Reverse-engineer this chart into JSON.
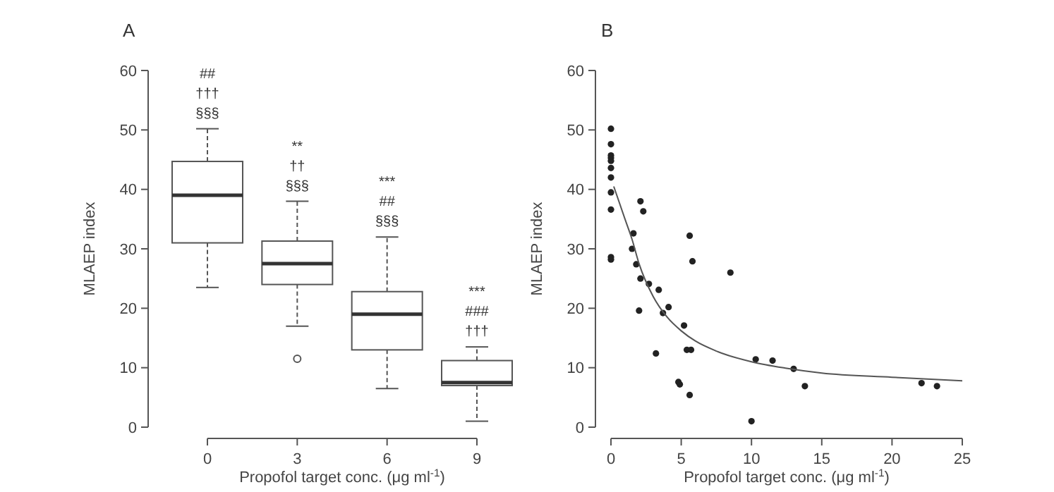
{
  "chart_data": [
    {
      "type": "box",
      "title": "A",
      "xlabel": "Propofol target conc. (μg ml$^{-1}$)",
      "ylabel": "MLAEP index",
      "categories": [
        "0",
        "3",
        "6",
        "9"
      ],
      "boxes": [
        {
          "low": 23.5,
          "q1": 31,
          "median": 39,
          "q3": 44.7,
          "high": 50.2
        },
        {
          "low": 17,
          "q1": 24,
          "median": 27.5,
          "q3": 31.3,
          "high": 38,
          "outliers": [
            11.5
          ]
        },
        {
          "low": 6.5,
          "q1": 13,
          "median": 19,
          "q3": 22.8,
          "high": 32
        },
        {
          "low": 1,
          "q1": 7,
          "median": 7.5,
          "q3": 11.2,
          "high": 13.5
        }
      ],
      "ylim": [
        0,
        60
      ],
      "yticks": [
        0,
        10,
        20,
        30,
        40,
        50,
        60
      ],
      "annotations": [
        "##\n†††\n§§§",
        "**\n††\n§§§",
        "***\n##\n§§§",
        "***\n###\n†††"
      ]
    },
    {
      "type": "scatter",
      "title": "B",
      "xlabel": "Propofol target conc. (μg ml$^{-1}$)",
      "ylabel": "MLAEP index",
      "xlim": [
        0,
        25
      ],
      "xticks": [
        0,
        5,
        10,
        15,
        20,
        25
      ],
      "ylim": [
        0,
        60
      ],
      "yticks": [
        0,
        10,
        20,
        30,
        40,
        50,
        60
      ],
      "series": [
        {
          "type": "scatter",
          "color": "#222222",
          "marker": "circle",
          "x": [
            0,
            0,
            0,
            0,
            0,
            0,
            0,
            0,
            0,
            0,
            0,
            2.1,
            2.3,
            1.6,
            1.5,
            1.8,
            2.1,
            2.7,
            2,
            3.4,
            3.7,
            4.1,
            3.2,
            5.2,
            5.4,
            5.7,
            5.6,
            5.8,
            4.8,
            4.9,
            5.6,
            8.5,
            10,
            10.3,
            11.5,
            13,
            13.8,
            22.1,
            23.2
          ],
          "values": [
            50.2,
            47.6,
            45.7,
            45.3,
            44.8,
            43.6,
            42,
            39.5,
            36.6,
            28.6,
            28.2,
            38,
            36.3,
            32.6,
            30,
            27.4,
            25,
            24.1,
            19.6,
            23.1,
            19.2,
            20.2,
            12.4,
            17.1,
            13,
            13,
            32.2,
            27.9,
            7.6,
            7.2,
            5.4,
            26,
            1,
            11.4,
            11.2,
            9.8,
            6.9,
            7.4,
            6.9
          ]
        },
        {
          "type": "line",
          "color": "#555555",
          "x": [
            0.2,
            1,
            1.5,
            2,
            3,
            4,
            5,
            6,
            7.5,
            10,
            12.5,
            15,
            20,
            25
          ],
          "values": [
            40.5,
            35,
            31.6,
            27.5,
            22,
            18.5,
            16.2,
            14.5,
            12.8,
            11,
            9.9,
            9.1,
            8.4,
            7.8
          ]
        }
      ]
    }
  ]
}
